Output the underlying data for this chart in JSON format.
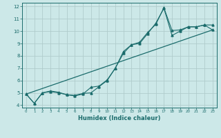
{
  "xlabel": "Humidex (Indice chaleur)",
  "xlim": [
    -0.5,
    23.5
  ],
  "ylim": [
    3.8,
    12.3
  ],
  "yticks": [
    4,
    5,
    6,
    7,
    8,
    9,
    10,
    11,
    12
  ],
  "xticks": [
    0,
    1,
    2,
    3,
    4,
    5,
    6,
    7,
    8,
    9,
    10,
    11,
    12,
    13,
    14,
    15,
    16,
    17,
    18,
    19,
    20,
    21,
    22,
    23
  ],
  "bg_color": "#cce8e8",
  "grid_color": "#b0cccc",
  "line_color": "#1a6b6b",
  "line1_x": [
    0,
    1,
    2,
    3,
    4,
    5,
    6,
    7,
    8,
    9,
    10,
    11,
    12,
    13,
    14,
    15,
    16,
    17,
    18,
    19,
    20,
    21,
    22,
    23
  ],
  "line1_y": [
    4.9,
    4.15,
    5.0,
    5.15,
    5.05,
    4.85,
    4.75,
    4.9,
    5.45,
    5.55,
    6.05,
    7.0,
    8.35,
    8.9,
    9.0,
    9.8,
    10.65,
    11.85,
    9.65,
    10.0,
    10.35,
    10.35,
    10.5,
    10.5
  ],
  "line2_x": [
    0,
    1,
    2,
    3,
    4,
    5,
    6,
    7,
    8,
    9,
    10,
    11,
    12,
    13,
    14,
    15,
    16,
    17,
    18,
    19,
    20,
    21,
    22,
    23
  ],
  "line2_y": [
    4.9,
    4.15,
    5.0,
    5.1,
    5.0,
    4.85,
    4.8,
    4.95,
    5.0,
    5.5,
    6.0,
    7.0,
    8.2,
    8.9,
    9.1,
    9.9,
    10.55,
    11.9,
    10.05,
    10.1,
    10.35,
    10.35,
    10.5,
    10.1
  ],
  "line3_x": [
    0,
    23
  ],
  "line3_y": [
    4.9,
    10.1
  ]
}
